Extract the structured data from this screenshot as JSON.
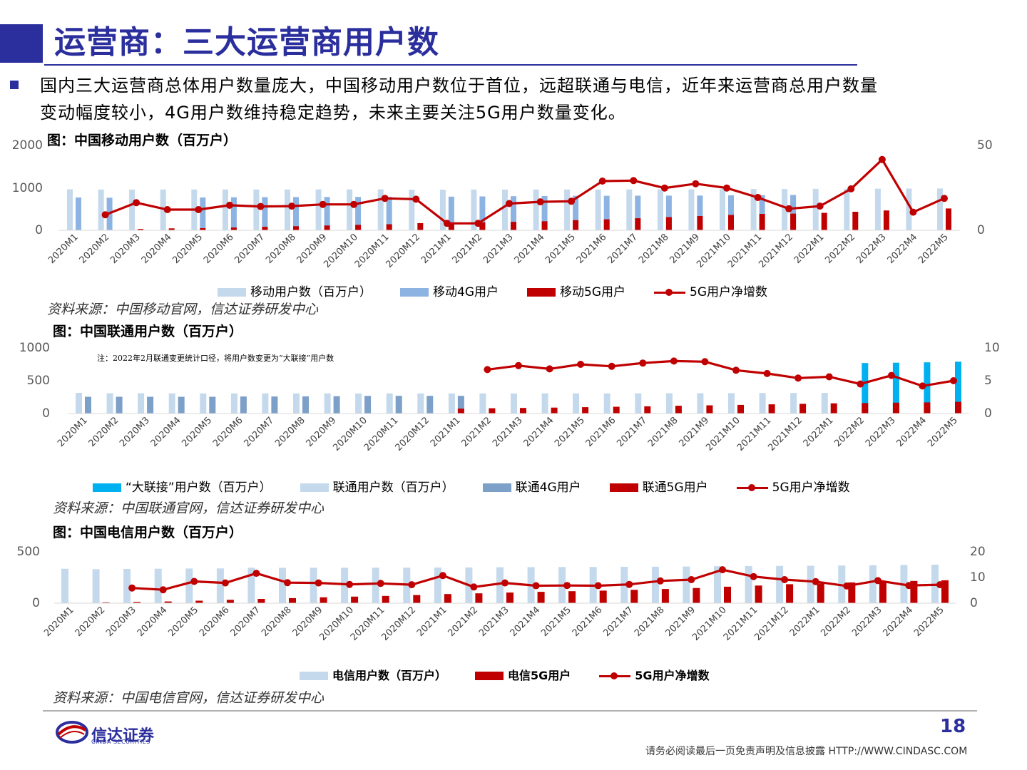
{
  "page": {
    "title": "运营商：三大运营商用户数",
    "intro_line1": "国内三大运营商总体用户数量庞大，中国移动用户数位于首位，远超联通与电信，近年来运营商总用户数量",
    "intro_line2": "变动幅度较小，4G用户数维持稳定趋势，未来主要关注5G用户数量变化。",
    "page_number": "18",
    "footer_note": "请务必阅读最后一页免责声明及信息披露  HTTP://WWW.CINDASC.COM",
    "logo_cn": "信达证券",
    "logo_en": "CINDA SECURITIES",
    "colors": {
      "brand": "#2b2f9d",
      "red": "#c00000",
      "light_blue": "#c5d9ec",
      "mid_blue": "#8db3e2",
      "cyan": "#00b0f0",
      "steel_blue": "#7da0c8"
    }
  },
  "charts": {
    "mobile": {
      "caption": "图：中国移动用户数（百万户）",
      "source": "资料来源：中国移动官网，信达证券研发中心"
    },
    "unicom": {
      "caption": "图：中国联通用户数（百万户）",
      "source": "资料来源：中国联通官网，信达证券研发中心",
      "note": "注：2022年2月联通变更统计口径，将用户数变更为“大联接”用户数"
    },
    "telecom": {
      "caption": "图：中国电信用户数（百万户）",
      "source": "资料来源：中国电信官网，信达证券研发中心"
    }
  },
  "chart_data": [
    {
      "id": "mobile",
      "type": "bar",
      "categories": [
        "2020M1",
        "2020M2",
        "2020M3",
        "2020M4",
        "2020M5",
        "2020M6",
        "2020M7",
        "2020M8",
        "2020M9",
        "2020M10",
        "2020M11",
        "2020M12",
        "2021M1",
        "2021M2",
        "2021M3",
        "2021M4",
        "2021M5",
        "2021M6",
        "2021M7",
        "2021M8",
        "2021M9",
        "2021M10",
        "2021M11",
        "2021M12",
        "2022M1",
        "2022M2",
        "2022M3",
        "2022M4",
        "2022M5"
      ],
      "yticks_left": [
        "2000",
        "1000",
        "0"
      ],
      "yticks_right": [
        "50",
        "0"
      ],
      "ylim_left": [
        0,
        2000
      ],
      "ylim_right": [
        0,
        50
      ],
      "series": [
        {
          "name": "移动用户数（百万户）",
          "type": "bar",
          "color": "#c5d9ec",
          "axis": "left",
          "values": [
            950,
            945,
            945,
            945,
            945,
            946,
            946,
            947,
            948,
            948,
            949,
            942,
            942,
            943,
            944,
            945,
            945,
            946,
            947,
            948,
            950,
            955,
            957,
            957,
            960,
            962,
            965,
            967,
            968
          ]
        },
        {
          "name": "移动4G用户",
          "type": "bar",
          "color": "#8db3e2",
          "axis": "left",
          "values": [
            760,
            755,
            null,
            null,
            760,
            765,
            768,
            770,
            772,
            774,
            776,
            null,
            780,
            785,
            790,
            795,
            798,
            800,
            802,
            803,
            805,
            810,
            815,
            820,
            null,
            null,
            null,
            null,
            null
          ]
        },
        {
          "name": "移动5G用户",
          "type": "bar",
          "color": "#c00000",
          "axis": "left",
          "values": [
            null,
            null,
            30,
            45,
            50,
            65,
            80,
            95,
            110,
            125,
            140,
            165,
            180,
            185,
            195,
            210,
            235,
            255,
            280,
            305,
            330,
            355,
            380,
            387,
            405,
            430,
            460,
            null,
            505
          ]
        },
        {
          "name": "5G用户净增数",
          "type": "line",
          "color": "#c00000",
          "axis": "right",
          "values": [
            null,
            9,
            16,
            12,
            12,
            14.5,
            13.8,
            14,
            15,
            15,
            18.5,
            18,
            4,
            4,
            15.5,
            16.5,
            16.8,
            28.5,
            28.8,
            24.5,
            27,
            24.5,
            19,
            12.5,
            14,
            24,
            41,
            10.5,
            18.5
          ]
        }
      ]
    },
    {
      "id": "unicom",
      "type": "bar",
      "categories": [
        "2020M1",
        "2020M2",
        "2020M3",
        "2020M4",
        "2020M5",
        "2020M6",
        "2020M7",
        "2020M8",
        "2020M9",
        "2020M10",
        "2020M11",
        "2020M12",
        "2021M1",
        "2021M2",
        "2021M3",
        "2021M4",
        "2021M5",
        "2021M6",
        "2021M7",
        "2021M8",
        "2021M9",
        "2021M10",
        "2021M11",
        "2021M12",
        "2022M1",
        "2022M2",
        "2022M3",
        "2022M4",
        "2022M5"
      ],
      "yticks_left": [
        "1000",
        "500",
        "0"
      ],
      "yticks_right": [
        "10",
        "5",
        "0"
      ],
      "ylim_left": [
        0,
        1000
      ],
      "ylim_right": [
        0,
        10
      ],
      "series": [
        {
          "name": "“大联接”用户数（百万户）",
          "type": "bar",
          "color": "#00b0f0",
          "axis": "left",
          "values": [
            null,
            null,
            null,
            null,
            null,
            null,
            null,
            null,
            null,
            null,
            null,
            null,
            null,
            null,
            null,
            null,
            null,
            null,
            null,
            null,
            null,
            null,
            null,
            null,
            null,
            770,
            775,
            780,
            790
          ]
        },
        {
          "name": "联通用户数（百万户）",
          "type": "bar",
          "color": "#c5d9ec",
          "axis": "left",
          "values": [
            315,
            310,
            310,
            308,
            307,
            306,
            306,
            306,
            306,
            306,
            306,
            306,
            306,
            307,
            307,
            308,
            308,
            308,
            308,
            309,
            310,
            311,
            312,
            313,
            314,
            null,
            null,
            null,
            null
          ]
        },
        {
          "name": "联通4G用户",
          "type": "bar",
          "color": "#7da0c8",
          "axis": "left",
          "values": [
            255,
            255,
            255,
            255,
            255,
            260,
            260,
            262,
            264,
            268,
            270,
            270,
            270,
            null,
            null,
            null,
            null,
            null,
            null,
            null,
            null,
            null,
            null,
            null,
            null,
            null,
            null,
            null,
            null
          ]
        },
        {
          "name": "联通5G用户",
          "type": "bar",
          "color": "#c00000",
          "axis": "left",
          "values": [
            null,
            null,
            null,
            null,
            null,
            null,
            null,
            null,
            null,
            null,
            null,
            null,
            75,
            80,
            85,
            90,
            97,
            103,
            110,
            118,
            125,
            132,
            140,
            148,
            155,
            160,
            165,
            170,
            178
          ]
        },
        {
          "name": "5G用户净增数",
          "type": "line",
          "color": "#c00000",
          "axis": "right",
          "values": [
            null,
            null,
            null,
            null,
            null,
            null,
            null,
            null,
            null,
            null,
            null,
            null,
            null,
            6.7,
            7.3,
            6.8,
            7.5,
            7.2,
            7.7,
            8,
            7.9,
            6.6,
            6.1,
            5.4,
            5.6,
            4.5,
            5.8,
            4.2,
            5
          ]
        }
      ]
    },
    {
      "id": "telecom",
      "type": "bar",
      "categories": [
        "2020M1",
        "2020M2",
        "2020M3",
        "2020M4",
        "2020M5",
        "2020M6",
        "2020M7",
        "2020M8",
        "2020M9",
        "2020M10",
        "2020M11",
        "2020M12",
        "2021M1",
        "2021M2",
        "2021M3",
        "2021M4",
        "2021M5",
        "2021M6",
        "2021M7",
        "2021M8",
        "2021M9",
        "2021M10",
        "2021M11",
        "2021M12",
        "2022M1",
        "2022M2",
        "2022M3",
        "2022M4",
        "2022M5"
      ],
      "yticks_left": [
        "500",
        "0"
      ],
      "yticks_right": [
        "20",
        "10",
        "0"
      ],
      "ylim_left": [
        0,
        500
      ],
      "ylim_right": [
        0,
        20
      ],
      "series": [
        {
          "name": "电信用户数（百万户）",
          "type": "bar",
          "color": "#c5d9ec",
          "axis": "left",
          "values": [
            340,
            335,
            338,
            340,
            342,
            343,
            350,
            349,
            350,
            350,
            351,
            351,
            352,
            353,
            355,
            356,
            357,
            358,
            359,
            360,
            362,
            365,
            367,
            368,
            370,
            372,
            375,
            377,
            380
          ]
        },
        {
          "name": "电信5G用户",
          "type": "bar",
          "color": "#c00000",
          "axis": "left",
          "values": [
            null,
            8,
            12,
            17,
            25,
            33,
            42,
            50,
            58,
            65,
            72,
            80,
            90,
            97,
            105,
            112,
            118,
            124,
            132,
            140,
            150,
            163,
            174,
            187,
            195,
            205,
            213,
            220,
            226
          ]
        },
        {
          "name": "5G用户净增数",
          "type": "line",
          "color": "#c00000",
          "axis": "right",
          "values": [
            null,
            null,
            6,
            5.3,
            8.6,
            8,
            11.8,
            8.1,
            8,
            7.4,
            7.8,
            7.3,
            10.9,
            6.4,
            8,
            6.9,
            7,
            6.9,
            7.4,
            8.8,
            9.3,
            13.2,
            10.5,
            9.3,
            8.5,
            6.8,
            8.9,
            7,
            7.3
          ]
        }
      ]
    }
  ]
}
